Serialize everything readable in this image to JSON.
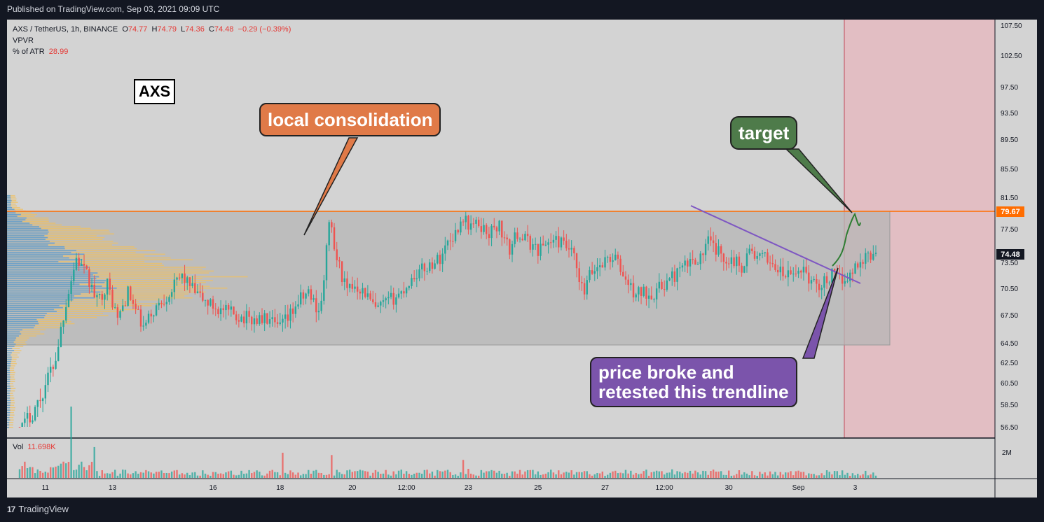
{
  "header": {
    "published": "Published on TradingView.com, Sep 03, 2021 09:09 UTC"
  },
  "footer": {
    "brand": "TradingView"
  },
  "legend": {
    "symbol": "AXS / TetherUS, 1h, BINANCE",
    "o_label": "O",
    "o": "74.77",
    "h_label": "H",
    "h": "74.79",
    "l_label": "L",
    "l": "74.36",
    "c_label": "C",
    "c": "74.48",
    "change": "−0.29 (−0.39%)",
    "vpvr": "VPVR",
    "atr_label": "% of ATR",
    "atr": "28.99"
  },
  "volume_pane": {
    "label": "Vol",
    "value": "11.698K",
    "axis_label": "2M"
  },
  "annotations": {
    "ticker_box": "AXS",
    "local": "local consolidation",
    "target": "target",
    "price_line1": "price broke and",
    "price_line2": "retested this trendline"
  },
  "price_badges": {
    "resistance": "79.67",
    "last": "74.48"
  },
  "colors": {
    "up": "#26a69a",
    "down": "#ef5350",
    "resistance": "#ff6d00",
    "trendline": "#7e57c2",
    "target_zone": "#f3b6bd",
    "vpvr_up": "#5b9bd5",
    "vpvr_down": "#f0c060"
  },
  "chart_data": {
    "type": "candlestick",
    "symbol": "AXS / TetherUS",
    "interval": "1h",
    "exchange": "BINANCE",
    "y_ticks": [
      107.5,
      102.5,
      97.5,
      93.5,
      89.5,
      85.5,
      81.5,
      77.5,
      73.5,
      70.5,
      67.5,
      64.5,
      62.5,
      60.5,
      58.5,
      56.5
    ],
    "y_tick_labels": [
      "107.50",
      "102.50",
      "97.50",
      "93.50",
      "89.50",
      "85.50",
      "81.50",
      "77.50",
      "73.50",
      "70.50",
      "67.50",
      "64.50",
      "62.50",
      "60.50",
      "58.50",
      "56.50"
    ],
    "x_tick_labels": [
      "11",
      "13",
      "16",
      "18",
      "20",
      "12:00",
      "23",
      "25",
      "27",
      "12:00",
      "30",
      "Sep",
      "3"
    ],
    "resistance_level": 79.67,
    "consolidation_range": [
      64.5,
      79.67
    ],
    "last_price": 74.48,
    "path_points": [
      [
        0,
        56
      ],
      [
        8,
        59
      ],
      [
        14,
        63
      ],
      [
        18,
        69
      ],
      [
        22,
        74
      ],
      [
        26,
        72
      ],
      [
        30,
        69
      ],
      [
        34,
        71
      ],
      [
        38,
        67
      ],
      [
        42,
        70
      ],
      [
        48,
        66
      ],
      [
        52,
        68
      ],
      [
        58,
        70
      ],
      [
        63,
        72
      ],
      [
        68,
        70
      ],
      [
        72,
        69
      ],
      [
        78,
        68
      ],
      [
        84,
        67.5
      ],
      [
        90,
        67
      ],
      [
        96,
        67
      ],
      [
        100,
        66
      ],
      [
        104,
        67
      ],
      [
        108,
        69
      ],
      [
        112,
        70
      ],
      [
        116,
        68
      ],
      [
        118,
        71
      ],
      [
        120,
        79
      ],
      [
        122,
        75
      ],
      [
        124,
        73
      ],
      [
        127,
        70
      ],
      [
        130,
        71
      ],
      [
        134,
        70
      ],
      [
        138,
        68
      ],
      [
        143,
        69
      ],
      [
        148,
        70
      ],
      [
        153,
        72
      ],
      [
        158,
        73
      ],
      [
        163,
        74
      ],
      [
        166,
        76
      ],
      [
        169,
        77
      ],
      [
        172,
        79
      ],
      [
        174,
        78
      ],
      [
        178,
        78
      ],
      [
        182,
        77
      ],
      [
        186,
        78
      ],
      [
        188,
        76
      ],
      [
        190,
        75
      ],
      [
        193,
        77
      ],
      [
        197,
        76
      ],
      [
        201,
        75
      ],
      [
        205,
        76
      ],
      [
        209,
        76
      ],
      [
        213,
        75
      ],
      [
        215,
        74
      ],
      [
        217,
        71
      ],
      [
        219,
        70
      ],
      [
        221,
        72
      ],
      [
        224,
        73
      ],
      [
        228,
        74
      ],
      [
        231,
        74
      ],
      [
        234,
        72
      ],
      [
        236,
        71
      ],
      [
        238,
        70
      ],
      [
        242,
        70
      ],
      [
        246,
        70
      ],
      [
        250,
        71
      ],
      [
        254,
        72
      ],
      [
        258,
        73
      ],
      [
        262,
        74
      ],
      [
        264,
        74
      ],
      [
        267,
        76
      ],
      [
        270,
        75
      ],
      [
        273,
        74
      ],
      [
        276,
        74
      ],
      [
        280,
        73
      ],
      [
        283,
        75
      ],
      [
        286,
        74
      ],
      [
        290,
        74
      ],
      [
        293,
        73
      ],
      [
        296,
        72
      ],
      [
        300,
        72
      ],
      [
        304,
        73
      ],
      [
        307,
        71
      ],
      [
        311,
        71
      ],
      [
        315,
        72
      ],
      [
        318,
        71.5
      ],
      [
        322,
        72
      ],
      [
        324,
        73
      ],
      [
        327,
        74
      ],
      [
        330,
        74.5
      ],
      [
        332,
        74
      ]
    ],
    "volume_spikes": [
      [
        20,
        5
      ],
      [
        29,
        4
      ],
      [
        102,
        3
      ],
      [
        121,
        6
      ],
      [
        142,
        2
      ],
      [
        172,
        4
      ],
      [
        174,
        3
      ],
      [
        253,
        3
      ]
    ],
    "annotations": [
      "AXS",
      "local consolidation",
      "target",
      "price broke and retested this trendline"
    ]
  }
}
